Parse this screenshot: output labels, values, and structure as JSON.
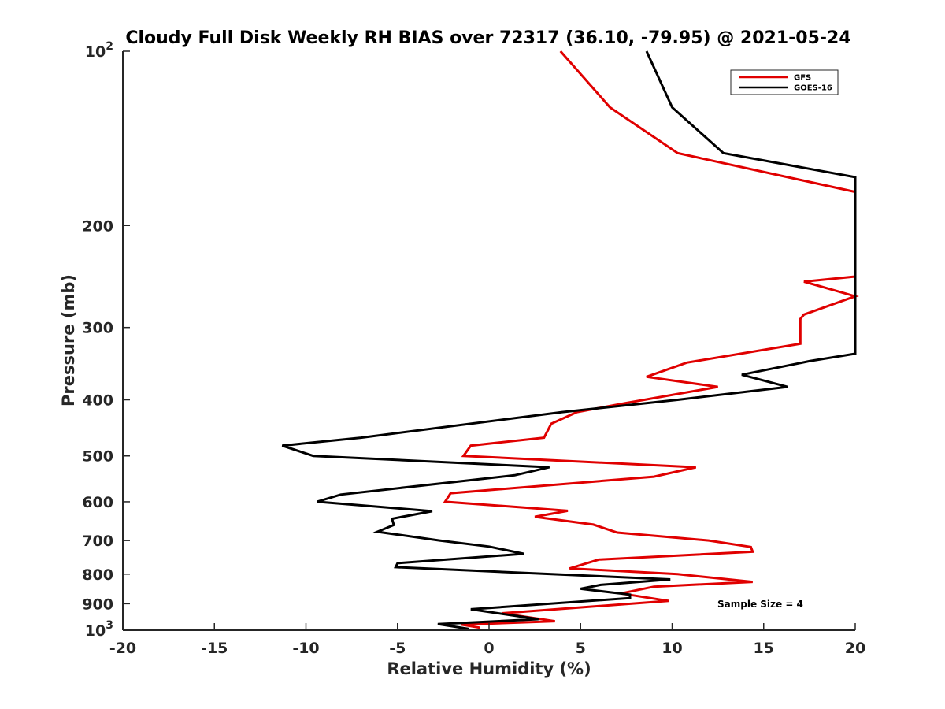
{
  "chart_data": {
    "type": "line",
    "title": "Cloudy Full Disk Weekly RH BIAS over 72317 (36.10, -79.95) @ 2021-05-24",
    "xlabel": "Relative Humidity (%)",
    "ylabel": "Pressure (mb)",
    "xlim": [
      -20,
      20
    ],
    "ylim": [
      100,
      1000
    ],
    "y_scale": "log",
    "y_direction": "reversed",
    "grid": false,
    "legend_position": "top-right",
    "x_ticks": [
      {
        "value": -20,
        "label": "-20"
      },
      {
        "value": -15,
        "label": "-15"
      },
      {
        "value": -10,
        "label": "-10"
      },
      {
        "value": -5,
        "label": "-5"
      },
      {
        "value": 0,
        "label": "0"
      },
      {
        "value": 5,
        "label": "5"
      },
      {
        "value": 10,
        "label": "10"
      },
      {
        "value": 15,
        "label": "15"
      },
      {
        "value": 20,
        "label": "20"
      }
    ],
    "y_ticks": [
      {
        "value": 100,
        "label": "10",
        "sup": "2"
      },
      {
        "value": 200,
        "label": "200",
        "sup": ""
      },
      {
        "value": 300,
        "label": "300",
        "sup": ""
      },
      {
        "value": 400,
        "label": "400",
        "sup": ""
      },
      {
        "value": 500,
        "label": "500",
        "sup": ""
      },
      {
        "value": 600,
        "label": "600",
        "sup": ""
      },
      {
        "value": 700,
        "label": "700",
        "sup": ""
      },
      {
        "value": 800,
        "label": "800",
        "sup": ""
      },
      {
        "value": 900,
        "label": "900",
        "sup": ""
      },
      {
        "value": 1000,
        "label": "10",
        "sup": "3"
      }
    ],
    "series": [
      {
        "name": "GFS",
        "color": "#e00000",
        "points": [
          {
            "x": 3.9,
            "p": 100
          },
          {
            "x": 6.6,
            "p": 125
          },
          {
            "x": 10.3,
            "p": 150
          },
          {
            "x": 20,
            "p": 175
          },
          {
            "x": 20,
            "p": 245
          },
          {
            "x": 17.2,
            "p": 250
          },
          {
            "x": 20,
            "p": 265
          },
          {
            "x": 17.2,
            "p": 285
          },
          {
            "x": 17,
            "p": 290
          },
          {
            "x": 17,
            "p": 320
          },
          {
            "x": 10.8,
            "p": 345
          },
          {
            "x": 8.6,
            "p": 365
          },
          {
            "x": 12.5,
            "p": 380
          },
          {
            "x": 7.5,
            "p": 405
          },
          {
            "x": 4.8,
            "p": 420
          },
          {
            "x": 3.4,
            "p": 440
          },
          {
            "x": 3,
            "p": 465
          },
          {
            "x": -1,
            "p": 480
          },
          {
            "x": -1.4,
            "p": 500
          },
          {
            "x": 11.3,
            "p": 523
          },
          {
            "x": 9,
            "p": 543
          },
          {
            "x": -2.1,
            "p": 580
          },
          {
            "x": -2.4,
            "p": 600
          },
          {
            "x": 4.3,
            "p": 622
          },
          {
            "x": 2.5,
            "p": 637
          },
          {
            "x": 5.7,
            "p": 657
          },
          {
            "x": 7,
            "p": 678
          },
          {
            "x": 12,
            "p": 700
          },
          {
            "x": 14.3,
            "p": 718
          },
          {
            "x": 14.4,
            "p": 732
          },
          {
            "x": 6,
            "p": 755
          },
          {
            "x": 4.4,
            "p": 782
          },
          {
            "x": 10.3,
            "p": 800
          },
          {
            "x": 14.4,
            "p": 825
          },
          {
            "x": 9,
            "p": 841
          },
          {
            "x": 7.2,
            "p": 864
          },
          {
            "x": 9.8,
            "p": 890
          },
          {
            "x": 0.7,
            "p": 935
          },
          {
            "x": 3.6,
            "p": 965
          },
          {
            "x": -1.5,
            "p": 978
          },
          {
            "x": -0.5,
            "p": 990
          }
        ]
      },
      {
        "name": "GOES-16",
        "color": "#000000",
        "points": [
          {
            "x": 8.6,
            "p": 100
          },
          {
            "x": 10,
            "p": 125
          },
          {
            "x": 12.8,
            "p": 150
          },
          {
            "x": 20,
            "p": 165
          },
          {
            "x": 20,
            "p": 333
          },
          {
            "x": 17.5,
            "p": 343
          },
          {
            "x": 13.8,
            "p": 362
          },
          {
            "x": 16.3,
            "p": 380
          },
          {
            "x": 10.3,
            "p": 400
          },
          {
            "x": 4,
            "p": 420
          },
          {
            "x": -7,
            "p": 465
          },
          {
            "x": -11.3,
            "p": 480
          },
          {
            "x": -9.6,
            "p": 500
          },
          {
            "x": 3.3,
            "p": 523
          },
          {
            "x": 1.4,
            "p": 540
          },
          {
            "x": -8.1,
            "p": 583
          },
          {
            "x": -9.4,
            "p": 600
          },
          {
            "x": -3.1,
            "p": 623
          },
          {
            "x": -5.3,
            "p": 642
          },
          {
            "x": -5.2,
            "p": 658
          },
          {
            "x": -6.1,
            "p": 676
          },
          {
            "x": -2.7,
            "p": 700
          },
          {
            "x": 0,
            "p": 717
          },
          {
            "x": 1.9,
            "p": 738
          },
          {
            "x": -5,
            "p": 766
          },
          {
            "x": -5.1,
            "p": 778
          },
          {
            "x": 9.9,
            "p": 817
          },
          {
            "x": 6.1,
            "p": 835
          },
          {
            "x": 5,
            "p": 848
          },
          {
            "x": 7.7,
            "p": 868
          },
          {
            "x": 7.7,
            "p": 880
          },
          {
            "x": -1,
            "p": 920
          },
          {
            "x": 2.7,
            "p": 957
          },
          {
            "x": -2.8,
            "p": 976
          },
          {
            "x": -1.1,
            "p": 995
          }
        ]
      }
    ],
    "annotations": [
      {
        "text": "Sample Size = 4"
      }
    ]
  }
}
